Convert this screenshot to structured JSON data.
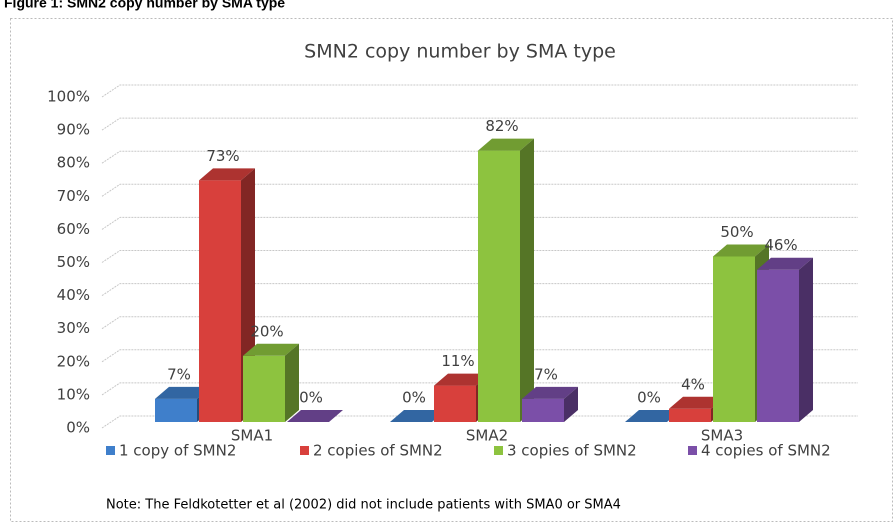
{
  "caption": "Figure 1: SMN2 copy number by SMA type",
  "note": "Note: The Feldkotetter et al (2002) did not include patients with SMA0 or SMA4",
  "chart_data": {
    "type": "bar3d",
    "title": "SMN2 copy number by SMA type",
    "categories": [
      "SMA1",
      "SMA2",
      "SMA3"
    ],
    "series": [
      {
        "name": "1 copy of SMN2",
        "color": "#3f7fcb",
        "values": [
          7,
          0,
          0
        ],
        "value_labels": [
          "7%",
          "0%",
          "0%"
        ]
      },
      {
        "name": "2 copies of SMN2",
        "color": "#d8403c",
        "values": [
          73,
          11,
          4
        ],
        "value_labels": [
          "73%",
          "11%",
          "4%"
        ]
      },
      {
        "name": "3 copies of SMN2",
        "color": "#8dc33f",
        "values": [
          20,
          82,
          50
        ],
        "value_labels": [
          "20%",
          "82%",
          "50%"
        ]
      },
      {
        "name": "4 copies of SMN2",
        "color": "#7b4fa8",
        "values": [
          0,
          7,
          46
        ],
        "value_labels": [
          "0%",
          "7%",
          "46%"
        ]
      }
    ],
    "ylim": [
      0,
      100
    ],
    "yticks": [
      {
        "value": 0,
        "label": "0%"
      },
      {
        "value": 10,
        "label": "10%"
      },
      {
        "value": 20,
        "label": "20%"
      },
      {
        "value": 30,
        "label": "30%"
      },
      {
        "value": 40,
        "label": "40%"
      },
      {
        "value": 50,
        "label": "50%"
      },
      {
        "value": 60,
        "label": "60%"
      },
      {
        "value": 70,
        "label": "70%"
      },
      {
        "value": 80,
        "label": "80%"
      },
      {
        "value": 90,
        "label": "90%"
      },
      {
        "value": 100,
        "label": "100%"
      }
    ],
    "grid": true,
    "legend": "bottom"
  }
}
